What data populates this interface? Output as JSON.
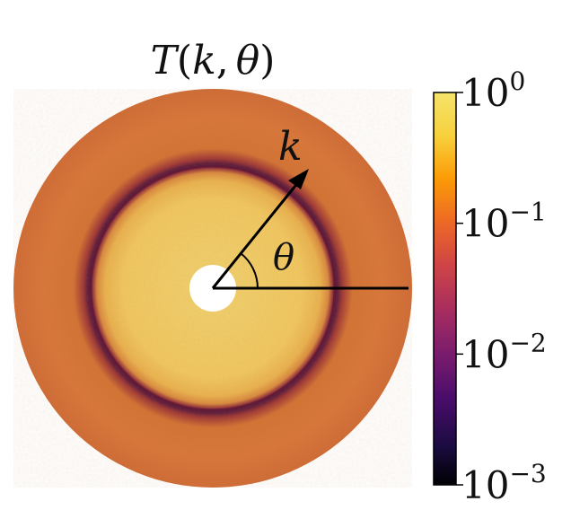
{
  "chart_data": {
    "type": "heatmap",
    "projection": "polar",
    "title": "T(k, θ)",
    "title_parts": {
      "func": "T",
      "open": "(",
      "arg1": "k",
      "sep": ",",
      "arg2": "θ",
      "close": ")"
    },
    "radial_variable": "k",
    "angular_variable": "θ",
    "colorscale": {
      "name": "inferno",
      "scale": "log",
      "range": [
        0.001,
        1
      ],
      "ticks": [
        {
          "value": 1,
          "base": "10",
          "exponent": "0"
        },
        {
          "value": 0.1,
          "base": "10",
          "exponent": "−1"
        },
        {
          "value": 0.01,
          "base": "10",
          "exponent": "−2"
        },
        {
          "value": 0.001,
          "base": "10",
          "exponent": "−3"
        }
      ]
    },
    "profile": [
      {
        "r": 0.0,
        "value": null
      },
      {
        "r": 0.12,
        "value": 0.8
      },
      {
        "r": 0.4,
        "value": 0.7
      },
      {
        "r": 0.55,
        "value": 0.6
      },
      {
        "r": 0.59,
        "value": 0.1
      },
      {
        "r": 0.62,
        "value": 0.02
      },
      {
        "r": 0.65,
        "value": 0.08
      },
      {
        "r": 0.72,
        "value": 0.25
      },
      {
        "r": 1.0,
        "value": 0.2
      }
    ]
  }
}
